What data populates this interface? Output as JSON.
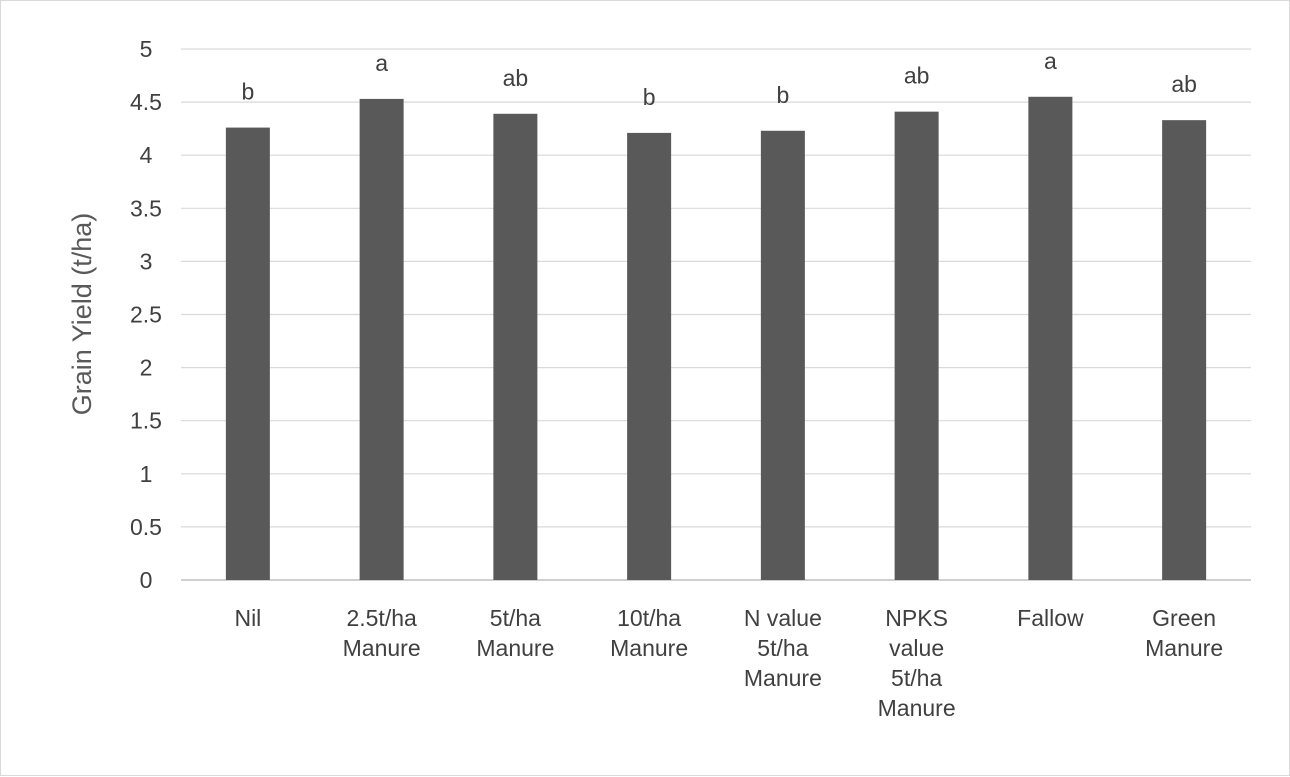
{
  "chart_data": {
    "type": "bar",
    "title": "",
    "xlabel": "",
    "ylabel": "Grain Yield (t/ha)",
    "ylim": [
      0,
      5
    ],
    "ytick_step": 0.5,
    "yticks": [
      "0",
      "0.5",
      "1",
      "1.5",
      "2",
      "2.5",
      "3",
      "3.5",
      "4",
      "4.5",
      "5"
    ],
    "grid": true,
    "legend": "none",
    "categories": [
      [
        "Nil"
      ],
      [
        "2.5t/ha",
        "Manure"
      ],
      [
        "5t/ha",
        "Manure"
      ],
      [
        "10t/ha",
        "Manure"
      ],
      [
        "N value",
        "5t/ha",
        "Manure"
      ],
      [
        "NPKS",
        "value",
        "5t/ha",
        "Manure"
      ],
      [
        "Fallow"
      ],
      [
        "Green",
        "Manure"
      ]
    ],
    "values": [
      4.26,
      4.53,
      4.39,
      4.21,
      4.23,
      4.41,
      4.55,
      4.33
    ],
    "significance_letters": [
      "b",
      "a",
      "ab",
      "b",
      "b",
      "ab",
      "a",
      "ab"
    ],
    "colors": {
      "bar": "#595959",
      "grid": "#d9d9d9",
      "axis": "#bfbfbf",
      "text": "#404040"
    }
  }
}
